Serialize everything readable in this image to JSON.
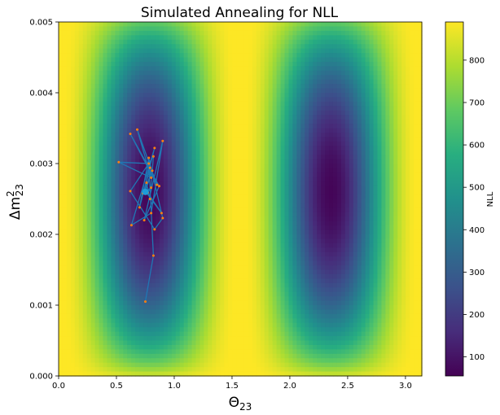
{
  "chart_data": {
    "type": "heatmap",
    "title": "Simulated Annealing for NLL",
    "xlabel_base": "Θ",
    "xlabel_sub": "23",
    "ylabel_base": "Δm",
    "ylabel_sup": "2",
    "ylabel_sub": "23",
    "colorbar_label": "NLL",
    "xlim": [
      0,
      3.14159
    ],
    "ylim": [
      0,
      0.005
    ],
    "x_ticks": [
      0.0,
      0.5,
      1.0,
      1.5,
      2.0,
      2.5,
      3.0
    ],
    "x_tick_labels": [
      "0.0",
      "0.5",
      "1.0",
      "1.5",
      "2.0",
      "2.5",
      "3.0"
    ],
    "y_ticks": [
      0.0,
      0.001,
      0.002,
      0.003,
      0.004,
      0.005
    ],
    "y_tick_labels": [
      "0.000",
      "0.001",
      "0.002",
      "0.003",
      "0.004",
      "0.005"
    ],
    "colorbar_range": [
      55,
      890
    ],
    "colorbar_ticks": [
      100,
      200,
      300,
      400,
      500,
      600,
      700,
      800
    ],
    "colorbar_tick_labels": [
      "100",
      "200",
      "300",
      "400",
      "500",
      "600",
      "700",
      "800"
    ],
    "colormap": "viridis",
    "annealing_path": {
      "color": "#1f77b4",
      "marker_color": "#ff7f0e",
      "points": [
        [
          0.75,
          0.00105
        ],
        [
          0.82,
          0.0017
        ],
        [
          0.78,
          0.003
        ],
        [
          0.52,
          0.00302
        ],
        [
          0.8,
          0.0028
        ],
        [
          0.68,
          0.00348
        ],
        [
          0.85,
          0.0027
        ],
        [
          0.62,
          0.00342
        ],
        [
          0.87,
          0.00268
        ],
        [
          0.74,
          0.0022
        ],
        [
          0.9,
          0.00332
        ],
        [
          0.8,
          0.0023
        ],
        [
          0.63,
          0.00213
        ],
        [
          0.83,
          0.00322
        ],
        [
          0.7,
          0.00238
        ],
        [
          0.78,
          0.00308
        ],
        [
          0.9,
          0.00223
        ],
        [
          0.83,
          0.00207
        ],
        [
          0.62,
          0.00261
        ],
        [
          0.82,
          0.0031
        ],
        [
          0.79,
          0.0025
        ],
        [
          0.76,
          0.00273
        ],
        [
          0.73,
          0.00258
        ],
        [
          0.8,
          0.00266
        ],
        [
          0.77,
          0.00259
        ],
        [
          0.89,
          0.0023
        ],
        [
          0.75,
          0.00261
        ],
        [
          0.81,
          0.0029
        ],
        [
          0.74,
          0.00262
        ],
        [
          0.79,
          0.00294
        ]
      ],
      "final_point": [
        0.75,
        0.0026
      ]
    }
  }
}
